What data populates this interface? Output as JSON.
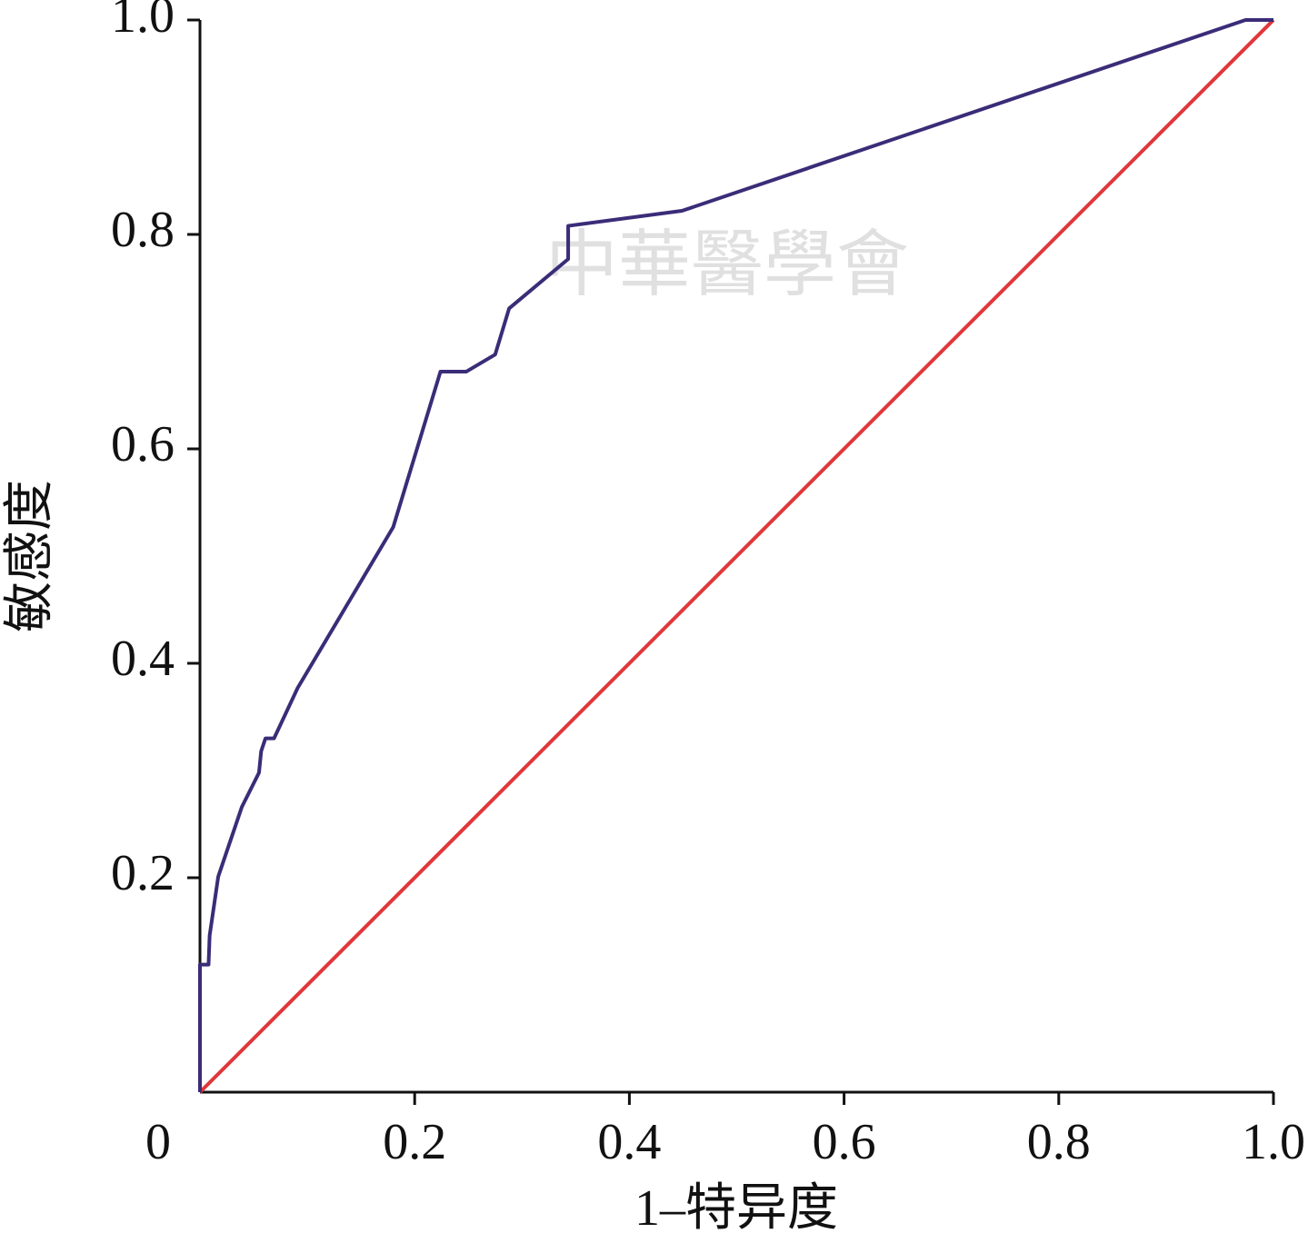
{
  "chart_data": {
    "type": "line",
    "x_label": "1–特异度",
    "y_label": "敏感度",
    "watermark": "中華醫學會",
    "xlim": [
      0,
      1
    ],
    "ylim": [
      0,
      1
    ],
    "xticks": [
      0,
      0.2,
      0.4,
      0.6,
      0.8,
      {
        "value": 1,
        "label": "1.0"
      }
    ],
    "yticks": [
      0.2,
      0.4,
      0.6,
      0.8,
      {
        "value": 1,
        "label": "1.0"
      }
    ],
    "grid": false,
    "series": [
      {
        "color": "#3b2c78",
        "x": [
          0,
          0,
          0.008,
          0.009,
          0.017,
          0.039,
          0.055,
          0.057,
          0.061,
          0.069,
          0.091,
          0.18,
          0.224,
          0.248,
          0.275,
          0.288,
          0.343,
          0.343,
          0.449,
          0.974,
          1
        ],
        "values": [
          0,
          0.119,
          0.119,
          0.146,
          0.201,
          0.266,
          0.298,
          0.318,
          0.33,
          0.33,
          0.377,
          0.527,
          0.672,
          0.672,
          0.688,
          0.731,
          0.777,
          0.808,
          0.822,
          1,
          1
        ]
      },
      {
        "color": "#e0373b",
        "x": [
          0,
          1
        ],
        "values": [
          0,
          1
        ]
      }
    ]
  }
}
